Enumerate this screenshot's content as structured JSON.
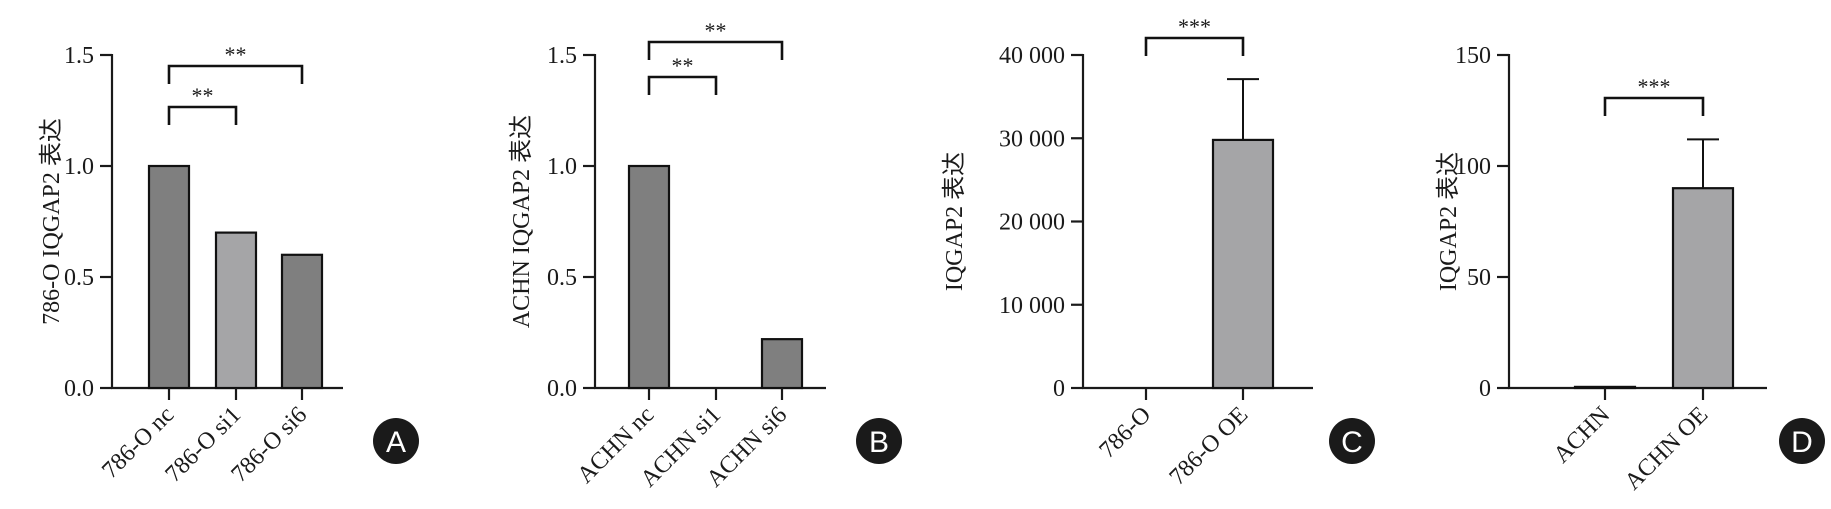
{
  "chart_data": [
    {
      "type": "bar",
      "panel": "A",
      "ylabel": "786-O IQGAP2 表达",
      "categories": [
        "786-O nc",
        "786-O si1",
        "786-O si6"
      ],
      "values": [
        1.0,
        0.7,
        0.6
      ],
      "bar_colors": [
        "#7f7f7f",
        "#a5a5a7",
        "#7f7f7f"
      ],
      "ylim": [
        0,
        1.5
      ],
      "yticks": [
        0,
        0.5,
        1.0,
        1.5
      ],
      "ytick_labels": [
        "0.0",
        "0.5",
        "1.0",
        "1.5"
      ],
      "significance": [
        {
          "from": 0,
          "to": 1,
          "label": "**"
        },
        {
          "from": 0,
          "to": 2,
          "label": "**"
        }
      ]
    },
    {
      "type": "bar",
      "panel": "B",
      "ylabel": "ACHN IQGAP2 表达",
      "categories": [
        "ACHN nc",
        "ACHN si1",
        "ACHN si6"
      ],
      "values": [
        1.0,
        0.0,
        0.22
      ],
      "bar_colors": [
        "#7f7f7f",
        "#a5a5a7",
        "#7f7f7f"
      ],
      "ylim": [
        0,
        1.5
      ],
      "yticks": [
        0,
        0.5,
        1.0,
        1.5
      ],
      "ytick_labels": [
        "0.0",
        "0.5",
        "1.0",
        "1.5"
      ],
      "significance": [
        {
          "from": 0,
          "to": 1,
          "label": "**"
        },
        {
          "from": 0,
          "to": 2,
          "label": "**"
        }
      ]
    },
    {
      "type": "bar",
      "panel": "C",
      "ylabel": "IQGAP2 表达",
      "categories": [
        "786-O",
        "786-O OE"
      ],
      "values": [
        0,
        29800
      ],
      "errors": [
        0,
        7300
      ],
      "bar_colors": [
        "#7f7f7f",
        "#a5a5a7"
      ],
      "ylim": [
        0,
        40000
      ],
      "yticks": [
        0,
        10000,
        20000,
        30000,
        40000
      ],
      "ytick_labels": [
        "0",
        "10 000",
        "20 000",
        "30 000",
        "40 000"
      ],
      "significance": [
        {
          "from": 0,
          "to": 1,
          "label": "***"
        }
      ]
    },
    {
      "type": "bar",
      "panel": "D",
      "ylabel": "IQGAP2 表达",
      "categories": [
        "ACHN",
        "ACHN OE"
      ],
      "values": [
        0.5,
        90
      ],
      "errors": [
        0,
        22
      ],
      "bar_colors": [
        "#7f7f7f",
        "#a5a5a7"
      ],
      "ylim": [
        0,
        150
      ],
      "yticks": [
        0,
        50,
        100,
        150
      ],
      "ytick_labels": [
        "0",
        "50",
        "100",
        "150"
      ],
      "significance": [
        {
          "from": 0,
          "to": 1,
          "label": "***"
        }
      ]
    }
  ]
}
